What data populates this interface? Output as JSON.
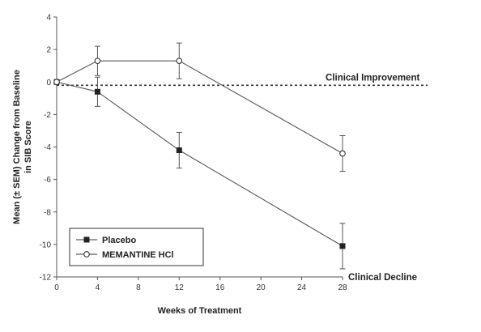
{
  "chart_data": {
    "type": "line",
    "xlabel": "Weeks of Treatment",
    "ylabel_line1": "Mean (± SEM) Change from Baseline",
    "ylabel_line2": "in SIB Score",
    "xlim": [
      0,
      28
    ],
    "ylim": [
      -12,
      4
    ],
    "x_ticks": [
      0,
      4,
      8,
      12,
      16,
      20,
      24,
      28
    ],
    "y_ticks": [
      4,
      2,
      0,
      -2,
      -4,
      -6,
      -8,
      -10,
      -12
    ],
    "reference_line": {
      "y": -0.2,
      "style": "dashed"
    },
    "annotations": {
      "improvement": "Clinical Improvement",
      "decline": "Clinical Decline"
    },
    "legend_position": "bottom-left",
    "series": [
      {
        "name": "Placebo",
        "marker": "square-filled",
        "x": [
          0,
          4,
          12,
          28
        ],
        "y": [
          0,
          -0.6,
          -4.2,
          -10.1
        ],
        "error": [
          0,
          0.9,
          1.1,
          1.4
        ]
      },
      {
        "name": "MEMANTINE HCl",
        "marker": "circle-open",
        "x": [
          0,
          4,
          12,
          28
        ],
        "y": [
          0,
          1.3,
          1.3,
          -4.4
        ],
        "error": [
          0,
          0.9,
          1.1,
          1.1
        ]
      }
    ]
  }
}
